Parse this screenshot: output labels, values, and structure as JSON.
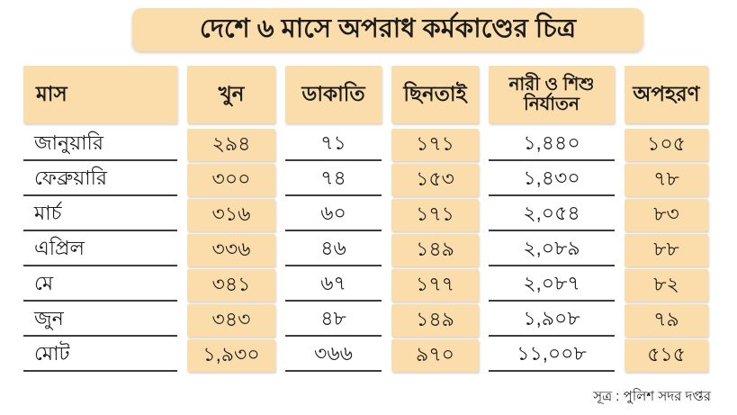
{
  "title": "দেশে ৬ মাসে অপরাধ কর্মকাণ্ডের চিত্র",
  "source": "সূত্র : পুলিশ সদর দপ্তর",
  "colors": {
    "peach": "#fbdcab",
    "text": "#1c1c1c",
    "line": "#3d3d3d",
    "background": "#ffffff"
  },
  "table": {
    "headers": {
      "month": "মাস",
      "murder": "খুন",
      "robbery": "ডাকাতি",
      "snatching": "ছিনতাই",
      "abuse_line1": "নারী ও শিশু",
      "abuse_line2": "নির্যাতন",
      "kidnapping": "অপহরণ"
    },
    "rows": [
      {
        "month": "জানুয়ারি",
        "murder": "২৯৪",
        "robbery": "৭১",
        "snatching": "১৭১",
        "abuse": "১,৪৪০",
        "kidnapping": "১০৫"
      },
      {
        "month": "ফেব্রুয়ারি",
        "murder": "৩০০",
        "robbery": "৭৪",
        "snatching": "১৫৩",
        "abuse": "১,৪৩০",
        "kidnapping": "৭৮"
      },
      {
        "month": "মার্চ",
        "murder": "৩১৬",
        "robbery": "৬০",
        "snatching": "১৭১",
        "abuse": "২,০৫৪",
        "kidnapping": "৮৩"
      },
      {
        "month": "এপ্রিল",
        "murder": "৩৩৬",
        "robbery": "৪৬",
        "snatching": "১৪৯",
        "abuse": "২,০৮৯",
        "kidnapping": "৮৮"
      },
      {
        "month": "মে",
        "murder": "৩৪১",
        "robbery": "৬৭",
        "snatching": "১৭৭",
        "abuse": "২,০৮৭",
        "kidnapping": "৮২"
      },
      {
        "month": "জুন",
        "murder": "৩৪৩",
        "robbery": "৪৮",
        "snatching": "১৪৯",
        "abuse": "১,৯০৮",
        "kidnapping": "৭৯"
      },
      {
        "month": "মোট",
        "murder": "১,৯৩০",
        "robbery": "৩৬৬",
        "snatching": "৯৭০",
        "abuse": "১১,০০৮",
        "kidnapping": "৫১৫"
      }
    ]
  },
  "chart_data": {
    "type": "table",
    "title": "দেশে ৬ মাসে অপরাধ কর্মকাণ্ডের চিত্র",
    "columns": [
      "মাস",
      "খুন",
      "ডাকাতি",
      "ছিনতাই",
      "নারী ও শিশু নির্যাতন",
      "অপহরণ"
    ],
    "categories": [
      "জানুয়ারি",
      "ফেব্রুয়ারি",
      "মার্চ",
      "এপ্রিল",
      "মে",
      "জুন"
    ],
    "series": [
      {
        "name": "খুন",
        "values": [
          294,
          300,
          316,
          336,
          341,
          343
        ],
        "total": 1930
      },
      {
        "name": "ডাকাতি",
        "values": [
          71,
          74,
          60,
          46,
          67,
          48
        ],
        "total": 366
      },
      {
        "name": "ছিনতাই",
        "values": [
          171,
          153,
          171,
          149,
          177,
          149
        ],
        "total": 970
      },
      {
        "name": "নারী ও শিশু নির্যাতন",
        "values": [
          1440,
          1430,
          2054,
          2089,
          2087,
          1908
        ],
        "total": 11008
      },
      {
        "name": "অপহরণ",
        "values": [
          105,
          78,
          83,
          88,
          82,
          79
        ],
        "total": 515
      }
    ],
    "total_row_label": "মোট",
    "source": "সূত্র : পুলিশ সদর দপ্তর"
  }
}
